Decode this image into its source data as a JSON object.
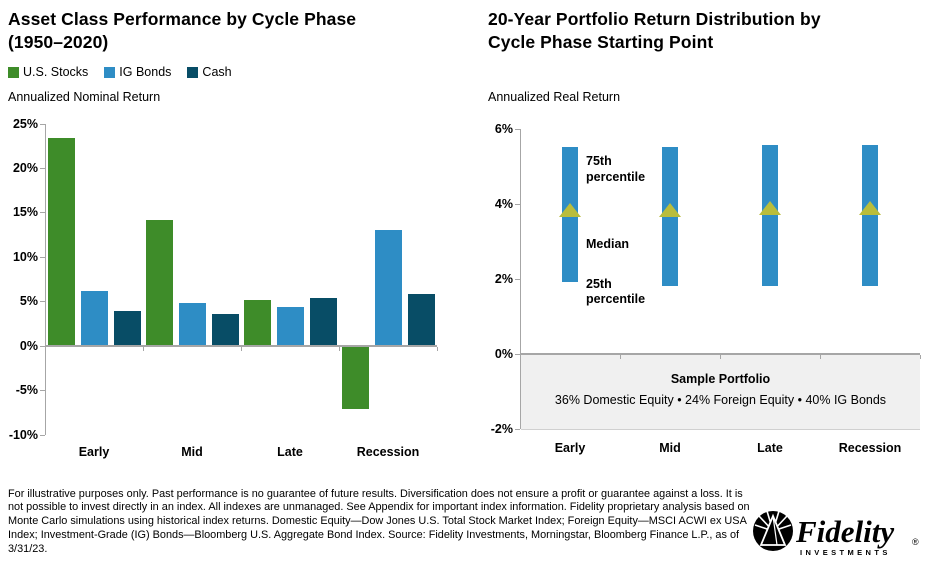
{
  "left_chart": {
    "title": "Asset Class Performance by Cycle Phase\n(1950–2020)",
    "y_axis_label": "Annualized Nominal Return",
    "legend": [
      {
        "label": "U.S. Stocks",
        "color": "#3e8c29"
      },
      {
        "label": "IG Bonds",
        "color": "#2e8dc5"
      },
      {
        "label": "Cash",
        "color": "#084d66"
      }
    ]
  },
  "right_chart": {
    "title": "20-Year Portfolio Return Distribution by\nCycle Phase Starting Point",
    "y_axis_label": "Annualized Real Return",
    "annotations": [
      {
        "label": "75th\npercentile",
        "at": 5.32
      },
      {
        "label": "Median",
        "at": 3.12
      },
      {
        "label": "25th\npercentile",
        "at": 2.05
      }
    ],
    "sample_portfolio": {
      "title": "Sample Portfolio",
      "detail": "36% Domestic Equity • 24% Foreign Equity • 40% IG Bonds"
    }
  },
  "chart_data": [
    {
      "type": "bar",
      "title": "Asset Class Performance by Cycle Phase (1950–2020)",
      "ylabel": "Annualized Nominal Return",
      "categories": [
        "Early",
        "Mid",
        "Late",
        "Recession"
      ],
      "series": [
        {
          "name": "U.S. Stocks",
          "color": "#3e8c29",
          "values": [
            23.4,
            14.1,
            5.1,
            -7.1
          ]
        },
        {
          "name": "IG Bonds",
          "color": "#2e8dc5",
          "values": [
            6.1,
            4.8,
            4.4,
            13.0
          ]
        },
        {
          "name": "Cash",
          "color": "#084d66",
          "values": [
            3.9,
            3.6,
            5.4,
            5.8
          ]
        }
      ],
      "ylim": [
        -10,
        25
      ],
      "ytick_step": 5,
      "ytick_format": "percent",
      "grid": false,
      "legend_position": "top-left"
    },
    {
      "type": "range_bar",
      "title": "20-Year Portfolio Return Distribution by Cycle Phase Starting Point",
      "ylabel": "Annualized Real Return",
      "categories": [
        "Early",
        "Mid",
        "Late",
        "Recession"
      ],
      "bar_color": "#2e8dc5",
      "median_marker_color": "#b9bd3b",
      "p75": [
        5.5,
        5.5,
        5.55,
        5.55
      ],
      "median": [
        3.65,
        3.65,
        3.7,
        3.7
      ],
      "p25": [
        1.9,
        1.8,
        1.8,
        1.8
      ],
      "ylim": [
        -2,
        6
      ],
      "ytick_step": 2,
      "ytick_format": "percent",
      "grid": false
    }
  ],
  "colors": {
    "axis": "#a6a6a6",
    "sample_box_fill": "#f0f0f0"
  },
  "footer": {
    "disclaimer": "For illustrative purposes only. Past performance is no guarantee of future results. Diversification does not ensure a profit or guarantee against a loss. It is not possible to invest directly in an index. All indexes are unmanaged. See Appendix for important index information. Fidelity proprietary analysis based on Monte Carlo simulations using historical index returns. Domestic Equity—Dow Jones U.S. Total Stock Market Index; Foreign Equity—MSCI ACWI ex USA Index; Investment-Grade (IG) Bonds—Bloomberg U.S. Aggregate Bond Index. Source: Fidelity Investments, Morningstar, Bloomberg Finance L.P., as of 3/31/23.",
    "logo": {
      "brand": "Fidelity",
      "registered": "®",
      "sub": "INVESTMENTS"
    }
  }
}
